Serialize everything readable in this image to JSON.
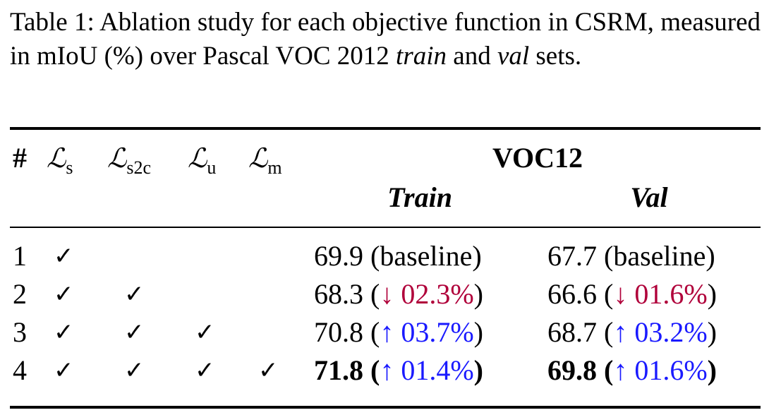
{
  "caption": {
    "prefix": "Table 1: Ablation study for each objective function in CSRM, measured in mIoU (%) over Pascal VOC 2012",
    "train_word": "train",
    "and_word": "and",
    "val_word": "val",
    "suffix": "sets."
  },
  "header": {
    "hash": "#",
    "loss_symbol": "ℒ",
    "losses": [
      "s",
      "s2c",
      "u",
      "m"
    ],
    "group": "VOC12",
    "train": "Train",
    "val": "Val"
  },
  "check_mark": "✓",
  "rows": [
    {
      "id": "1",
      "checks": [
        true,
        false,
        false,
        false
      ],
      "train": {
        "value": "69.9",
        "open": " (",
        "change": "baseline",
        "close": ")",
        "trend": "none"
      },
      "val": {
        "value": "67.7",
        "open": " (",
        "change": "baseline",
        "close": ")",
        "trend": "none"
      }
    },
    {
      "id": "2",
      "checks": [
        true,
        true,
        false,
        false
      ],
      "train": {
        "value": "68.3",
        "open": " (",
        "change": "↓ 02.3%",
        "close": ")",
        "trend": "down"
      },
      "val": {
        "value": "66.6",
        "open": " (",
        "change": "↓ 01.6%",
        "close": ")",
        "trend": "down"
      }
    },
    {
      "id": "3",
      "checks": [
        true,
        true,
        true,
        false
      ],
      "train": {
        "value": "70.8",
        "open": " (",
        "change": "↑ 03.7%",
        "close": ")",
        "trend": "up"
      },
      "val": {
        "value": "68.7",
        "open": " (",
        "change": "↑ 03.2%",
        "close": ")",
        "trend": "up"
      }
    },
    {
      "id": "4",
      "checks": [
        true,
        true,
        true,
        true
      ],
      "train": {
        "value": "71.8",
        "open": " (",
        "change": "↑ 01.4%",
        "close": ")",
        "trend": "up",
        "bold": true
      },
      "val": {
        "value": "69.8",
        "open": " (",
        "change": "↑ 01.6%",
        "close": ")",
        "trend": "up",
        "bold": true
      }
    }
  ],
  "colors": {
    "decrease": "#b0003a",
    "increase": "#1a1aff"
  }
}
